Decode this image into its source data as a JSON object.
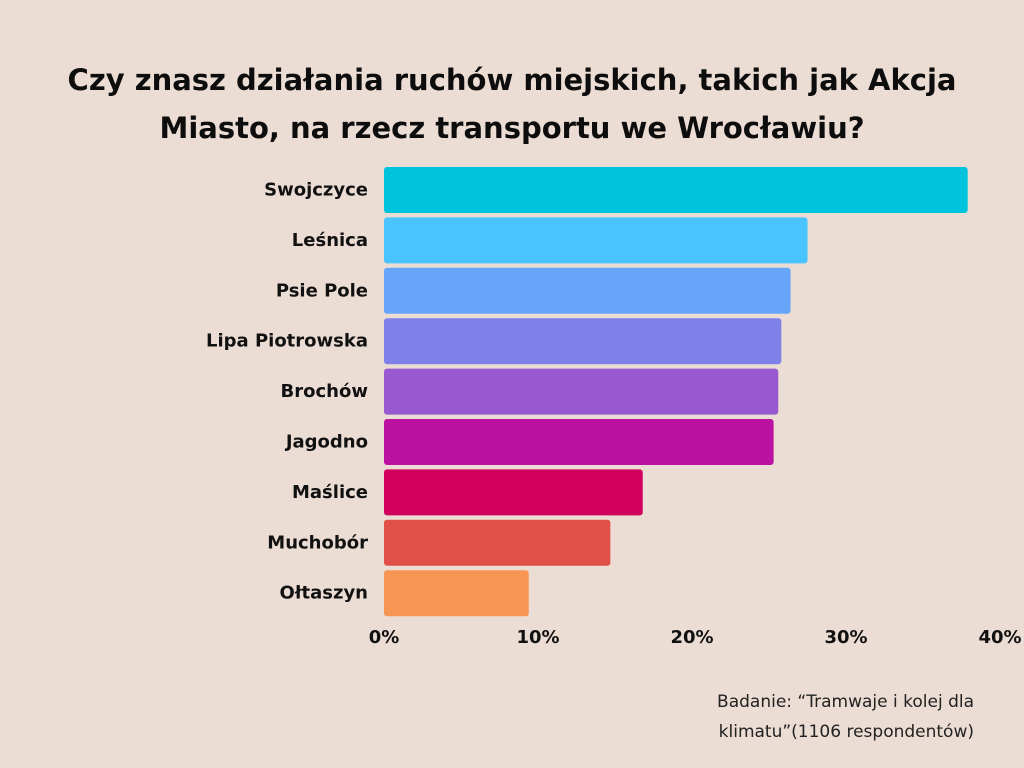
{
  "chart_data": {
    "type": "bar",
    "orientation": "horizontal",
    "title": "Czy znasz działania ruchów miejskich, takich jak Akcja Miasto, na rzecz transportu we Wrocławiu?",
    "categories": [
      "Swojczyce",
      "Leśnica",
      "Psie Pole",
      "Lipa Piotrowska",
      "Brochów",
      "Jagodno",
      "Maślice",
      "Muchobór",
      "Ołtaszyn"
    ],
    "values": [
      37.9,
      27.5,
      26.4,
      25.8,
      25.6,
      25.3,
      16.8,
      14.7,
      9.4
    ],
    "colors": [
      "#00c4db",
      "#4ac4ff",
      "#67a5fb",
      "#7f80e8",
      "#9858cf",
      "#bb12a2",
      "#d1005c",
      "#e05048",
      "#f79555"
    ],
    "xlim": [
      0,
      40
    ],
    "xticks": [
      "0%",
      "10%",
      "20%",
      "30%",
      "40%"
    ],
    "xlabel": "",
    "ylabel": "",
    "grid": false
  },
  "source": "Badanie: “Tramwaje i kolej dla klimatu”(1106 respondentów)"
}
